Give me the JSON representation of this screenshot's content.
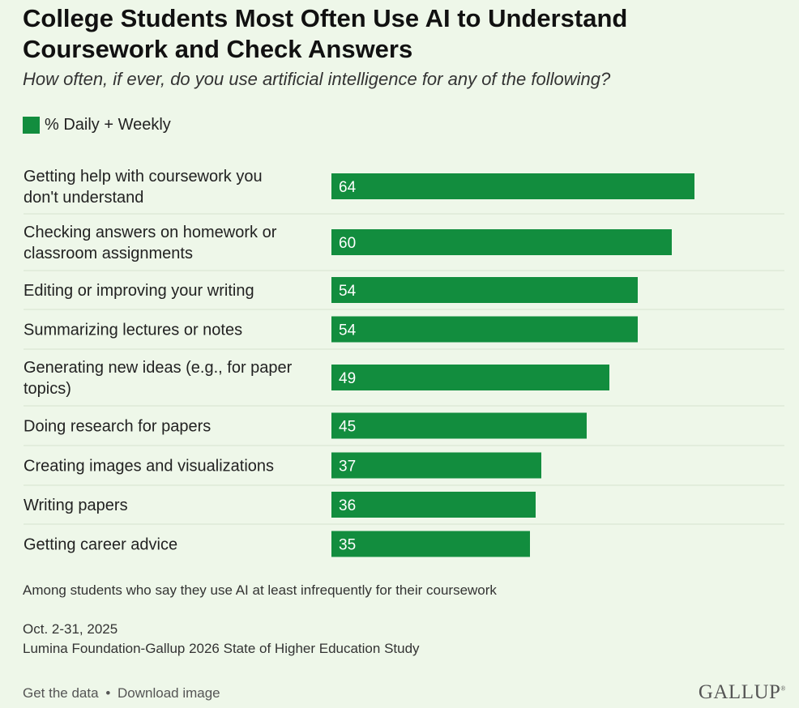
{
  "title": "College Students Most Often Use AI to Understand Coursework and Check Answers",
  "subtitle": "How often, if ever, do you use artificial intelligence for any of the following?",
  "legend": {
    "label": "% Daily + Weekly"
  },
  "colors": {
    "bar": "#128d3e",
    "background": "#eef7e9",
    "divider": "#d6e3d0"
  },
  "chart_data": {
    "type": "bar",
    "orientation": "horizontal",
    "categories": [
      [
        "Getting help with coursework you",
        "don't understand"
      ],
      [
        "Checking answers on homework or",
        "classroom assignments"
      ],
      [
        "Editing or improving your writing"
      ],
      [
        "Summarizing lectures or notes"
      ],
      [
        "Generating new ideas (e.g., for paper",
        "topics)"
      ],
      [
        "Doing research for papers"
      ],
      [
        "Creating images and visualizations"
      ],
      [
        "Writing papers"
      ],
      [
        "Getting career advice"
      ]
    ],
    "series": [
      {
        "name": "% Daily + Weekly",
        "values": [
          64,
          60,
          54,
          54,
          49,
          45,
          37,
          36,
          35
        ]
      }
    ],
    "data_labels": true,
    "xlim": [
      0,
      100
    ],
    "legend": "top-left",
    "grid": false
  },
  "notes": {
    "base": "Among students who say they use AI at least infrequently for their coursework",
    "dates": "Oct. 2-31, 2025",
    "source": "Lumina Foundation-Gallup 2026 State of Higher Education Study"
  },
  "footer": {
    "get_data": "Get the data",
    "separator": "•",
    "download": "Download image",
    "logo": "GALLUP",
    "logo_mark": "®"
  }
}
